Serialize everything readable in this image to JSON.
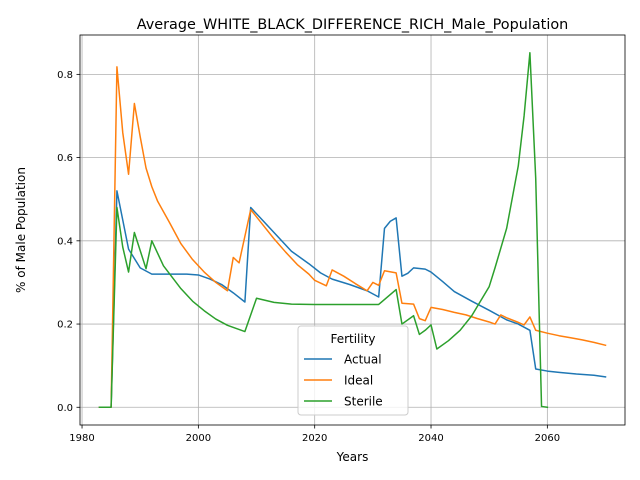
{
  "chart_data": {
    "type": "line",
    "title": "Average_WHITE_BLACK_DIFFERENCE_RICH_Male_Population",
    "xlabel": "Years",
    "ylabel": "% of Male Population",
    "xlim": [
      1979.65,
      2073.35
    ],
    "ylim": [
      -0.0426,
      0.8946
    ],
    "xticks": [
      1980,
      2000,
      2020,
      2040,
      2060
    ],
    "xtick_labels": [
      "1980",
      "2000",
      "2020",
      "2040",
      "2060"
    ],
    "yticks": [
      0.0,
      0.2,
      0.4,
      0.6,
      0.8
    ],
    "ytick_labels": [
      "0.0",
      "0.2",
      "0.4",
      "0.6",
      "0.8"
    ],
    "grid": true,
    "legend": {
      "title": "Fertility",
      "position": "lower center"
    },
    "series": [
      {
        "name": "Actual",
        "color": "#1f77b4",
        "x": [
          1983,
          1985,
          1986,
          1988,
          1990,
          1992,
          1994,
          1996,
          1998,
          2000,
          2002,
          2004,
          2006,
          2008,
          2009,
          2011,
          2013,
          2016,
          2019,
          2021,
          2023,
          2026,
          2029,
          2031,
          2032,
          2033,
          2034,
          2035,
          2036,
          2037,
          2039,
          2040,
          2042,
          2044,
          2047,
          2050,
          2053,
          2055,
          2057,
          2058,
          2060,
          2062,
          2065,
          2068,
          2070
        ],
        "values": [
          0.0,
          0.0,
          0.52,
          0.38,
          0.335,
          0.32,
          0.32,
          0.32,
          0.32,
          0.318,
          0.308,
          0.295,
          0.275,
          0.253,
          0.48,
          0.45,
          0.42,
          0.375,
          0.345,
          0.323,
          0.308,
          0.295,
          0.28,
          0.265,
          0.43,
          0.447,
          0.455,
          0.315,
          0.322,
          0.335,
          0.332,
          0.325,
          0.302,
          0.278,
          0.255,
          0.233,
          0.21,
          0.2,
          0.185,
          0.092,
          0.087,
          0.084,
          0.08,
          0.077,
          0.073
        ]
      },
      {
        "name": "Ideal",
        "color": "#ff7f0e",
        "x": [
          1983,
          1985,
          1986,
          1987,
          1988,
          1989,
          1990,
          1991,
          1992,
          1993,
          1995,
          1997,
          1999,
          2001,
          2003,
          2005,
          2006,
          2007,
          2009,
          2011,
          2013,
          2015,
          2017,
          2019,
          2020,
          2022,
          2023,
          2025,
          2027,
          2029,
          2030,
          2031,
          2032,
          2034,
          2035,
          2037,
          2038,
          2039,
          2040,
          2042,
          2044,
          2046,
          2048,
          2050,
          2051,
          2052,
          2053,
          2055,
          2056,
          2057,
          2058,
          2060,
          2062,
          2064,
          2066,
          2068,
          2070
        ],
        "values": [
          0.0,
          0.0,
          0.818,
          0.66,
          0.56,
          0.73,
          0.65,
          0.575,
          0.53,
          0.495,
          0.445,
          0.393,
          0.355,
          0.325,
          0.3,
          0.28,
          0.36,
          0.347,
          0.475,
          0.44,
          0.405,
          0.373,
          0.343,
          0.32,
          0.305,
          0.292,
          0.33,
          0.315,
          0.297,
          0.28,
          0.3,
          0.293,
          0.328,
          0.323,
          0.25,
          0.248,
          0.213,
          0.208,
          0.24,
          0.235,
          0.228,
          0.222,
          0.213,
          0.205,
          0.2,
          0.222,
          0.215,
          0.204,
          0.198,
          0.217,
          0.185,
          0.178,
          0.172,
          0.167,
          0.162,
          0.156,
          0.149
        ]
      },
      {
        "name": "Sterile",
        "color": "#2ca02c",
        "x": [
          1983,
          1985,
          1986,
          1987,
          1988,
          1989,
          1991,
          1992,
          1994,
          1997,
          1999,
          2001,
          2003,
          2005,
          2008,
          2010,
          2013,
          2016,
          2020,
          2025,
          2031,
          2034,
          2035,
          2037,
          2038,
          2039,
          2040,
          2041,
          2043,
          2045,
          2047,
          2050,
          2051,
          2053,
          2055,
          2056,
          2057,
          2058,
          2059,
          2060
        ],
        "values": [
          0.0,
          0.0,
          0.48,
          0.385,
          0.325,
          0.42,
          0.333,
          0.4,
          0.34,
          0.285,
          0.255,
          0.232,
          0.212,
          0.197,
          0.182,
          0.262,
          0.252,
          0.248,
          0.247,
          0.247,
          0.247,
          0.283,
          0.2,
          0.22,
          0.175,
          0.185,
          0.198,
          0.14,
          0.16,
          0.185,
          0.22,
          0.29,
          0.335,
          0.43,
          0.58,
          0.7,
          0.852,
          0.55,
          0.002,
          0.0
        ]
      }
    ]
  }
}
